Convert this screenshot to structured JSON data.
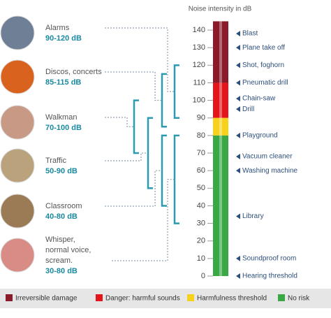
{
  "scale": {
    "title": "Noise intensity in dB",
    "ticks": [
      0,
      10,
      20,
      30,
      40,
      50,
      60,
      70,
      80,
      90,
      100,
      110,
      120,
      130,
      140
    ],
    "top": 145,
    "markers": [
      {
        "label": "Blast",
        "value": 138
      },
      {
        "label": "Plane take off",
        "value": 130
      },
      {
        "label": "Shot, foghorn",
        "value": 120
      },
      {
        "label": "Pneumatic drill",
        "value": 110
      },
      {
        "label": "Chain-saw",
        "value": 101
      },
      {
        "label": "Drill",
        "value": 95
      },
      {
        "label": "Playground",
        "value": 80
      },
      {
        "label": "Vacuum cleaner",
        "value": 68
      },
      {
        "label": "Washing machine",
        "value": 60
      },
      {
        "label": "Library",
        "value": 34
      },
      {
        "label": "Soundproof room",
        "value": 10
      },
      {
        "label": "Hearing threshold",
        "value": 0
      }
    ]
  },
  "sources": [
    {
      "name": [
        "Alarms"
      ],
      "range": "90-120 dB",
      "min": 90,
      "max": 120,
      "color": "#6f7f95"
    },
    {
      "name": [
        "Discos, concerts"
      ],
      "range": "85-115 dB",
      "min": 85,
      "max": 115,
      "color": "#d9631e"
    },
    {
      "name": [
        "Walkman"
      ],
      "range": "70-100 dB",
      "min": 70,
      "max": 100,
      "color": "#c89a86"
    },
    {
      "name": [
        "Traffic"
      ],
      "range": "50-90 dB",
      "min": 50,
      "max": 90,
      "color": "#b9a27c"
    },
    {
      "name": [
        "Classroom"
      ],
      "range": "40-80 dB",
      "min": 40,
      "max": 80,
      "color": "#9a7b55"
    },
    {
      "name": [
        "Whisper,",
        "normal voice,",
        "scream."
      ],
      "range": "30-80 dB",
      "min": 30,
      "max": 80,
      "color": "#d98c86"
    }
  ],
  "legend": [
    {
      "label": "Irreversible damage",
      "color": "#8b1a2b",
      "from": 110,
      "to": 145
    },
    {
      "label": "Danger: harmful sounds",
      "color": "#e3161b",
      "from": 90,
      "to": 110
    },
    {
      "label": "Harmfulness threshold",
      "color": "#f6d21c",
      "from": 80,
      "to": 90
    },
    {
      "label": "No risk",
      "color": "#3aa845",
      "from": 0,
      "to": 80
    }
  ]
}
